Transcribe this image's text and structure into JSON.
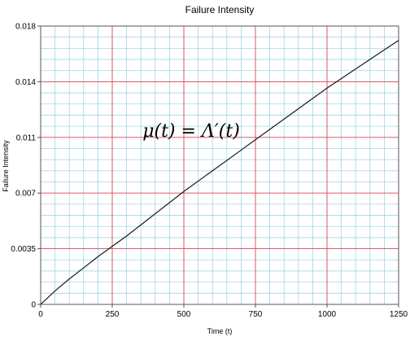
{
  "chart_data": {
    "type": "line",
    "title": "Failure Intensity",
    "xlabel": "Time (t)",
    "ylabel": "Failure Intensity",
    "xlim": [
      0,
      1250
    ],
    "ylim": [
      0,
      0.0175
    ],
    "x_ticks": [
      0,
      250,
      500,
      750,
      1000,
      1250
    ],
    "x_tick_labels": [
      "0",
      "250",
      "500",
      "750",
      "1000",
      "1250"
    ],
    "y_ticks": [
      0,
      0.0035,
      0.007,
      0.0105,
      0.014,
      0.0175
    ],
    "y_tick_labels": [
      "0",
      "0.0035",
      "0.007",
      "0.011",
      "0.014",
      "0.018"
    ],
    "grid": true,
    "minor_per_major": 5,
    "annotation": "μ(t) = Λ′(t)",
    "series": [
      {
        "x": [
          0,
          50,
          100,
          150,
          200,
          250,
          300,
          400,
          500,
          600,
          700,
          800,
          900,
          1000,
          1100,
          1200,
          1250
        ],
        "y": [
          0,
          0.00085,
          0.0016,
          0.0023,
          0.003,
          0.00365,
          0.0043,
          0.0057,
          0.0071,
          0.0084,
          0.0097,
          0.011,
          0.0123,
          0.0136,
          0.0148,
          0.016,
          0.0166
        ]
      }
    ],
    "colors": {
      "line": "#1a1a1a",
      "major_grid": "#d6455b",
      "minor_grid": "#9fd6e6",
      "axis": "#555555"
    }
  }
}
